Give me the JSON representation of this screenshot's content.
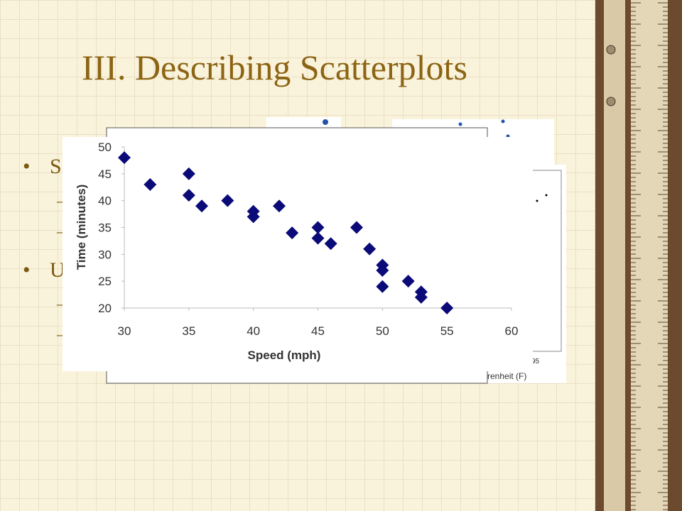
{
  "slide": {
    "title": "III. Describing Scatterplots",
    "bullets": [
      "S",
      "U"
    ],
    "background_labels": [
      "95",
      "renheit (F)"
    ]
  },
  "chart_data": {
    "type": "scatter",
    "x_label": "Speed (mph)",
    "y_label": "Time (minutes)",
    "x": [
      30,
      32,
      35,
      35,
      36,
      38,
      40,
      40,
      42,
      43,
      45,
      45,
      46,
      48,
      49,
      50,
      50,
      50,
      52,
      53,
      53,
      55
    ],
    "values": [
      48,
      43,
      45,
      41,
      39,
      40,
      38,
      37,
      39,
      34,
      35,
      33,
      32,
      35,
      31,
      28,
      27,
      24,
      25,
      23,
      22,
      20
    ],
    "color": "#0a0a78",
    "xlim": [
      30,
      60
    ],
    "xticks": [
      30,
      35,
      40,
      45,
      50,
      55,
      60
    ],
    "ylim": [
      20,
      50
    ],
    "yticks": [
      20,
      25,
      30,
      35,
      40,
      45,
      50
    ]
  }
}
